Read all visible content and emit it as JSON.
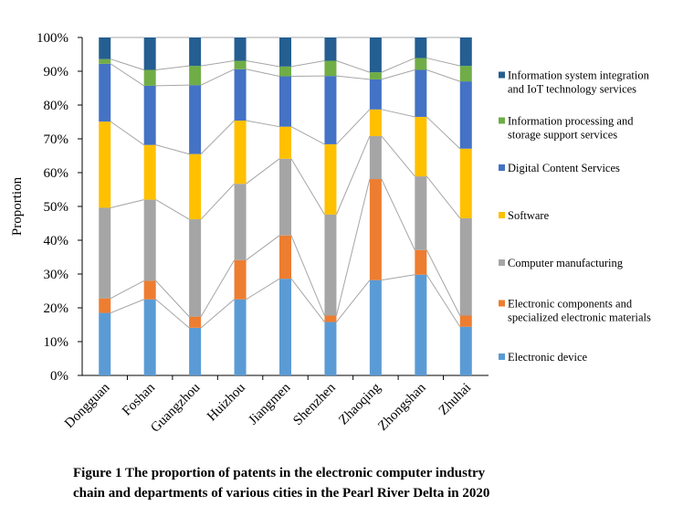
{
  "chart_data": {
    "type": "bar",
    "stacked": true,
    "normalized": true,
    "ylabel": "Proportion",
    "xlabel": "",
    "ylim": [
      0,
      100
    ],
    "yticks": [
      "0%",
      "10%",
      "20%",
      "30%",
      "40%",
      "50%",
      "60%",
      "70%",
      "80%",
      "90%",
      "100%"
    ],
    "grid": false,
    "legend_position": "right",
    "series_lines": true,
    "categories": [
      "Dongguan",
      "Foshan",
      "Guangzhou",
      "Huizhou",
      "Jiangmen",
      "Shenzhen",
      "Zhaoqing",
      "Zhongshan",
      "Zhuhai"
    ],
    "series": [
      {
        "name": "Electronic device",
        "color": "#5B9BD5",
        "values": [
          18.5,
          22.5,
          14.1,
          22.5,
          28.6,
          15.8,
          28.2,
          29.8,
          14.4
        ]
      },
      {
        "name": "Electronic components and specialized electronic materials",
        "color": "#ED7D31",
        "values": [
          4.3,
          5.5,
          3.3,
          11.6,
          12.8,
          1.9,
          29.9,
          7.3,
          3.3
        ]
      },
      {
        "name": "Computer manufacturing",
        "color": "#A5A5A5",
        "values": [
          26.8,
          24.0,
          28.8,
          22.6,
          22.7,
          29.9,
          12.7,
          21.8,
          28.8
        ]
      },
      {
        "name": "Software",
        "color": "#FFC000",
        "values": [
          25.5,
          16.2,
          19.3,
          18.7,
          9.5,
          20.8,
          7.9,
          17.6,
          20.6
        ]
      },
      {
        "name": "Digital Content Services",
        "color": "#4472C4",
        "values": [
          17.1,
          17.5,
          20.4,
          15.2,
          14.9,
          20.2,
          8.9,
          13.9,
          19.9
        ]
      },
      {
        "name": "Information processing and storage support services",
        "color": "#70AD47",
        "values": [
          1.4,
          4.7,
          5.7,
          2.5,
          2.9,
          4.5,
          2.1,
          3.5,
          4.6
        ]
      },
      {
        "name": "Information system integration and IoT technology services",
        "color": "#255E91",
        "values": [
          6.4,
          9.6,
          8.4,
          6.9,
          8.6,
          6.9,
          10.3,
          6.1,
          8.4
        ]
      }
    ],
    "legend_lines": [
      [
        "Information system integration",
        "and IoT technology services"
      ],
      [
        "Information processing and",
        "storage support services"
      ],
      [
        "Digital Content Services"
      ],
      [
        "Software"
      ],
      [
        "Computer manufacturing"
      ],
      [
        "Electronic components and",
        "specialized electronic materials"
      ],
      [
        "Electronic device"
      ]
    ]
  },
  "caption": {
    "line1": "Figure 1  The proportion of patents in the electronic computer industry",
    "line2": "chain and departments of various cities in the Pearl River Delta in 2020"
  }
}
